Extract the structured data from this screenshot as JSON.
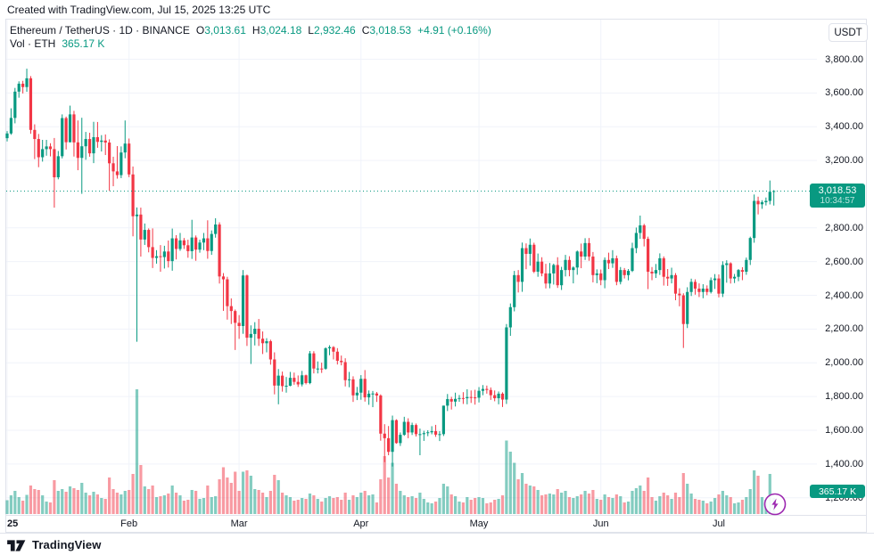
{
  "topbar": {
    "text": "Created with TradingView.com, Jul 15, 2025 13:25 UTC"
  },
  "legend": {
    "title": "Ethereum / TetherUS · 1D · BINANCE",
    "ohlc": [
      {
        "k": "O",
        "v": "3,013.61"
      },
      {
        "k": "H",
        "v": "3,024.18"
      },
      {
        "k": "L",
        "v": "2,932.46"
      },
      {
        "k": "C",
        "v": "3,018.53"
      }
    ],
    "change": "+4.91 (+0.16%)",
    "vol_label": "Vol · ETH",
    "vol_value": "365.17 K"
  },
  "axis": {
    "currency": "USDT"
  },
  "badges": {
    "price": {
      "text": "3,018.53",
      "countdown": "10:34:57"
    },
    "volume": {
      "text": "365.17 K"
    }
  },
  "footer": {
    "brand": "TradingView"
  },
  "colors": {
    "up": "#089981",
    "down": "#f23645",
    "vol_up": "rgba(8,153,129,0.5)",
    "vol_down": "rgba(242,54,69,0.5)",
    "grid": "#f0f3fa",
    "border": "#e0e3eb",
    "text": "#131722",
    "current_price_line": "#089981",
    "flash_purple": "#9c27b0"
  },
  "price_axis": {
    "labels": [
      {
        "price": 3800,
        "text": "3,800.00"
      },
      {
        "price": 3600,
        "text": "3,600.00"
      },
      {
        "price": 3400,
        "text": "3,400.00"
      },
      {
        "price": 3200,
        "text": "3,200.00"
      },
      {
        "price": 2800,
        "text": "2,800.00"
      },
      {
        "price": 2600,
        "text": "2,600.00"
      },
      {
        "price": 2400,
        "text": "2,400.00"
      },
      {
        "price": 2200,
        "text": "2,200.00"
      },
      {
        "price": 2000,
        "text": "2,000.00"
      },
      {
        "price": 1800,
        "text": "1,800.00"
      },
      {
        "price": 1600,
        "text": "1,600.00"
      },
      {
        "price": 1400,
        "text": "1,400.00"
      },
      {
        "price": 1200,
        "text": "1,200.00"
      }
    ]
  },
  "time_axis": {
    "labels": [
      {
        "label": "25",
        "day": 0,
        "bold": true
      },
      {
        "label": "Feb",
        "day": 31,
        "bold": false
      },
      {
        "label": "Mar",
        "day": 59,
        "bold": false
      },
      {
        "label": "Apr",
        "day": 90,
        "bold": false
      },
      {
        "label": "May",
        "day": 120,
        "bold": false
      },
      {
        "label": "Jun",
        "day": 151,
        "bold": false
      },
      {
        "label": "Jul",
        "day": 181,
        "bold": false
      }
    ]
  },
  "chart_data": {
    "type": "candlestick",
    "symbol": "ETHUSDT",
    "exchange": "BINANCE",
    "interval": "1D",
    "start_date": "2025-01-01",
    "end_date": "2025-07-15",
    "current_price": 3018.53,
    "price_axis_range": [
      1150,
      3900
    ],
    "volume_unit": "K ETH",
    "columns": [
      "open",
      "high",
      "low",
      "close",
      "volume_k"
    ],
    "candles": [
      [
        3332,
        3374,
        3313,
        3360,
        310
      ],
      [
        3360,
        3509,
        3352,
        3452,
        420
      ],
      [
        3452,
        3630,
        3420,
        3608,
        520
      ],
      [
        3608,
        3669,
        3572,
        3655,
        380
      ],
      [
        3655,
        3672,
        3597,
        3635,
        300
      ],
      [
        3635,
        3744,
        3607,
        3687,
        430
      ],
      [
        3687,
        3700,
        3358,
        3381,
        640
      ],
      [
        3381,
        3414,
        3208,
        3327,
        560
      ],
      [
        3327,
        3357,
        3160,
        3219,
        540
      ],
      [
        3219,
        3322,
        3193,
        3267,
        420
      ],
      [
        3267,
        3322,
        3228,
        3283,
        280
      ],
      [
        3283,
        3302,
        3224,
        3267,
        260
      ],
      [
        3267,
        3333,
        2920,
        3100,
        760
      ],
      [
        3100,
        3256,
        3088,
        3225,
        520
      ],
      [
        3225,
        3473,
        3212,
        3451,
        560
      ],
      [
        3451,
        3460,
        3265,
        3308,
        500
      ],
      [
        3308,
        3525,
        3307,
        3473,
        620
      ],
      [
        3473,
        3494,
        3223,
        3307,
        580
      ],
      [
        3307,
        3437,
        3142,
        3215,
        540
      ],
      [
        3215,
        3453,
        3002,
        3284,
        700
      ],
      [
        3284,
        3369,
        3204,
        3327,
        480
      ],
      [
        3327,
        3364,
        3222,
        3242,
        420
      ],
      [
        3242,
        3429,
        3184,
        3338,
        500
      ],
      [
        3338,
        3428,
        3275,
        3310,
        440
      ],
      [
        3310,
        3350,
        3253,
        3318,
        360
      ],
      [
        3318,
        3354,
        3232,
        3306,
        340
      ],
      [
        3306,
        3325,
        3020,
        3183,
        820
      ],
      [
        3183,
        3222,
        3047,
        3135,
        560
      ],
      [
        3135,
        3285,
        3092,
        3113,
        480
      ],
      [
        3113,
        3283,
        3095,
        3247,
        440
      ],
      [
        3247,
        3437,
        3213,
        3300,
        520
      ],
      [
        3300,
        3330,
        3101,
        3117,
        540
      ],
      [
        3117,
        3164,
        2750,
        2869,
        900
      ],
      [
        2869,
        2921,
        2125,
        2879,
        2800
      ],
      [
        2879,
        2920,
        2630,
        2731,
        1100
      ],
      [
        2731,
        2826,
        2699,
        2788,
        620
      ],
      [
        2788,
        2797,
        2655,
        2686,
        560
      ],
      [
        2686,
        2797,
        2562,
        2622,
        640
      ],
      [
        2622,
        2668,
        2588,
        2632,
        380
      ],
      [
        2632,
        2698,
        2540,
        2627,
        400
      ],
      [
        2627,
        2694,
        2559,
        2660,
        420
      ],
      [
        2660,
        2725,
        2565,
        2603,
        460
      ],
      [
        2603,
        2796,
        2546,
        2738,
        640
      ],
      [
        2738,
        2757,
        2613,
        2675,
        480
      ],
      [
        2675,
        2770,
        2664,
        2726,
        420
      ],
      [
        2726,
        2740,
        2675,
        2697,
        300
      ],
      [
        2697,
        2730,
        2623,
        2662,
        320
      ],
      [
        2662,
        2848,
        2616,
        2743,
        540
      ],
      [
        2743,
        2755,
        2605,
        2671,
        520
      ],
      [
        2671,
        2730,
        2653,
        2713,
        340
      ],
      [
        2713,
        2770,
        2668,
        2738,
        360
      ],
      [
        2738,
        2845,
        2617,
        2663,
        640
      ],
      [
        2663,
        2785,
        2640,
        2764,
        380
      ],
      [
        2764,
        2857,
        2742,
        2820,
        400
      ],
      [
        2820,
        2833,
        2470,
        2512,
        780
      ],
      [
        2512,
        2532,
        2308,
        2495,
        1050
      ],
      [
        2495,
        2510,
        2256,
        2336,
        820
      ],
      [
        2336,
        2382,
        2230,
        2307,
        700
      ],
      [
        2307,
        2316,
        2076,
        2237,
        950
      ],
      [
        2237,
        2283,
        2142,
        2218,
        520
      ],
      [
        2218,
        2550,
        2172,
        2518,
        950
      ],
      [
        2518,
        2523,
        2100,
        2149,
        980
      ],
      [
        2149,
        2222,
        1993,
        2171,
        860
      ],
      [
        2171,
        2241,
        2103,
        2202,
        560
      ],
      [
        2202,
        2260,
        2100,
        2143,
        540
      ],
      [
        2143,
        2186,
        2052,
        2116,
        480
      ],
      [
        2116,
        2146,
        2062,
        2128,
        380
      ],
      [
        2128,
        2137,
        1989,
        2020,
        520
      ],
      [
        2020,
        2062,
        1813,
        1865,
        880
      ],
      [
        1865,
        1963,
        1754,
        1924,
        760
      ],
      [
        1924,
        1948,
        1829,
        1862,
        480
      ],
      [
        1862,
        1916,
        1823,
        1864,
        420
      ],
      [
        1864,
        1946,
        1861,
        1911,
        380
      ],
      [
        1911,
        1942,
        1870,
        1887,
        300
      ],
      [
        1887,
        1925,
        1857,
        1872,
        320
      ],
      [
        1872,
        1952,
        1860,
        1926,
        360
      ],
      [
        1926,
        1930,
        1872,
        1880,
        340
      ],
      [
        1880,
        2070,
        1873,
        2056,
        460
      ],
      [
        2056,
        2069,
        1937,
        1966,
        420
      ],
      [
        1966,
        2008,
        1937,
        1966,
        340
      ],
      [
        1966,
        2001,
        1940,
        1965,
        280
      ],
      [
        1965,
        2092,
        1959,
        2086,
        360
      ],
      [
        2086,
        2104,
        2045,
        2093,
        400
      ],
      [
        2093,
        2099,
        2020,
        2066,
        360
      ],
      [
        2066,
        2087,
        1990,
        2012,
        380
      ],
      [
        2012,
        2043,
        1985,
        2004,
        320
      ],
      [
        2004,
        2027,
        1860,
        1897,
        480
      ],
      [
        1897,
        1946,
        1855,
        1902,
        320
      ],
      [
        1902,
        1920,
        1768,
        1807,
        420
      ],
      [
        1807,
        1857,
        1779,
        1823,
        380
      ],
      [
        1823,
        1927,
        1781,
        1905,
        480
      ],
      [
        1905,
        1957,
        1770,
        1795,
        520
      ],
      [
        1795,
        1836,
        1751,
        1817,
        420
      ],
      [
        1817,
        1833,
        1737,
        1818,
        440
      ],
      [
        1818,
        1827,
        1768,
        1806,
        260
      ],
      [
        1806,
        1813,
        1538,
        1580,
        780
      ],
      [
        1580,
        1636,
        1411,
        1553,
        1300
      ],
      [
        1553,
        1625,
        1452,
        1472,
        820
      ],
      [
        1472,
        1687,
        1385,
        1660,
        1150
      ],
      [
        1660,
        1665,
        1520,
        1524,
        680
      ],
      [
        1524,
        1587,
        1507,
        1573,
        520
      ],
      [
        1573,
        1680,
        1567,
        1650,
        420
      ],
      [
        1650,
        1671,
        1553,
        1587,
        380
      ],
      [
        1587,
        1645,
        1572,
        1631,
        400
      ],
      [
        1631,
        1640,
        1563,
        1577,
        360
      ],
      [
        1577,
        1610,
        1452,
        1577,
        480
      ],
      [
        1577,
        1597,
        1537,
        1583,
        340
      ],
      [
        1583,
        1600,
        1565,
        1588,
        260
      ],
      [
        1588,
        1624,
        1576,
        1595,
        240
      ],
      [
        1595,
        1632,
        1561,
        1574,
        280
      ],
      [
        1574,
        1595,
        1536,
        1577,
        360
      ],
      [
        1577,
        1746,
        1566,
        1746,
        680
      ],
      [
        1746,
        1815,
        1714,
        1785,
        620
      ],
      [
        1785,
        1798,
        1723,
        1770,
        440
      ],
      [
        1770,
        1823,
        1741,
        1786,
        400
      ],
      [
        1786,
        1809,
        1769,
        1791,
        280
      ],
      [
        1791,
        1826,
        1756,
        1790,
        260
      ],
      [
        1790,
        1843,
        1754,
        1797,
        380
      ],
      [
        1797,
        1836,
        1762,
        1795,
        320
      ],
      [
        1795,
        1840,
        1752,
        1793,
        360
      ],
      [
        1793,
        1856,
        1765,
        1834,
        380
      ],
      [
        1834,
        1868,
        1808,
        1845,
        360
      ],
      [
        1845,
        1865,
        1817,
        1839,
        240
      ],
      [
        1839,
        1854,
        1780,
        1808,
        260
      ],
      [
        1808,
        1836,
        1772,
        1790,
        320
      ],
      [
        1790,
        1830,
        1754,
        1817,
        340
      ],
      [
        1817,
        1825,
        1738,
        1782,
        420
      ],
      [
        1782,
        2230,
        1756,
        2210,
        1650
      ],
      [
        2210,
        2352,
        2160,
        2330,
        1400
      ],
      [
        2330,
        2545,
        2305,
        2520,
        1150
      ],
      [
        2520,
        2550,
        2417,
        2480,
        780
      ],
      [
        2480,
        2713,
        2421,
        2680,
        920
      ],
      [
        2680,
        2708,
        2555,
        2646,
        680
      ],
      [
        2646,
        2737,
        2576,
        2700,
        640
      ],
      [
        2700,
        2712,
        2532,
        2540,
        620
      ],
      [
        2540,
        2648,
        2510,
        2600,
        540
      ],
      [
        2600,
        2626,
        2513,
        2530,
        420
      ],
      [
        2530,
        2587,
        2441,
        2470,
        440
      ],
      [
        2470,
        2592,
        2442,
        2530,
        460
      ],
      [
        2530,
        2588,
        2464,
        2580,
        440
      ],
      [
        2580,
        2626,
        2444,
        2460,
        560
      ],
      [
        2460,
        2569,
        2432,
        2550,
        480
      ],
      [
        2550,
        2640,
        2512,
        2610,
        520
      ],
      [
        2610,
        2632,
        2513,
        2550,
        380
      ],
      [
        2550,
        2572,
        2471,
        2565,
        360
      ],
      [
        2565,
        2666,
        2522,
        2660,
        400
      ],
      [
        2660,
        2707,
        2561,
        2630,
        440
      ],
      [
        2630,
        2739,
        2610,
        2710,
        520
      ],
      [
        2710,
        2740,
        2605,
        2630,
        460
      ],
      [
        2630,
        2657,
        2477,
        2520,
        540
      ],
      [
        2520,
        2554,
        2472,
        2530,
        340
      ],
      [
        2530,
        2553,
        2460,
        2490,
        320
      ],
      [
        2490,
        2625,
        2442,
        2610,
        440
      ],
      [
        2610,
        2653,
        2556,
        2590,
        380
      ],
      [
        2590,
        2668,
        2563,
        2620,
        360
      ],
      [
        2620,
        2636,
        2460,
        2480,
        440
      ],
      [
        2480,
        2568,
        2465,
        2550,
        400
      ],
      [
        2550,
        2562,
        2500,
        2520,
        260
      ],
      [
        2520,
        2556,
        2489,
        2545,
        280
      ],
      [
        2545,
        2712,
        2538,
        2680,
        520
      ],
      [
        2680,
        2802,
        2650,
        2770,
        580
      ],
      [
        2770,
        2873,
        2735,
        2815,
        640
      ],
      [
        2815,
        2824,
        2690,
        2735,
        520
      ],
      [
        2735,
        2748,
        2437,
        2540,
        820
      ],
      [
        2540,
        2568,
        2490,
        2530,
        380
      ],
      [
        2530,
        2586,
        2503,
        2550,
        300
      ],
      [
        2550,
        2649,
        2521,
        2620,
        400
      ],
      [
        2620,
        2631,
        2458,
        2510,
        480
      ],
      [
        2510,
        2556,
        2456,
        2500,
        420
      ],
      [
        2500,
        2564,
        2471,
        2520,
        340
      ],
      [
        2520,
        2532,
        2371,
        2410,
        480
      ],
      [
        2410,
        2442,
        2335,
        2400,
        380
      ],
      [
        2400,
        2412,
        2088,
        2230,
        920
      ],
      [
        2230,
        2448,
        2206,
        2420,
        680
      ],
      [
        2420,
        2499,
        2396,
        2480,
        460
      ],
      [
        2480,
        2495,
        2404,
        2440,
        340
      ],
      [
        2440,
        2471,
        2390,
        2420,
        320
      ],
      [
        2420,
        2466,
        2383,
        2440,
        300
      ],
      [
        2440,
        2459,
        2401,
        2420,
        240
      ],
      [
        2420,
        2506,
        2411,
        2490,
        280
      ],
      [
        2490,
        2526,
        2438,
        2500,
        360
      ],
      [
        2500,
        2524,
        2388,
        2410,
        440
      ],
      [
        2410,
        2602,
        2390,
        2580,
        520
      ],
      [
        2580,
        2608,
        2475,
        2590,
        420
      ],
      [
        2590,
        2596,
        2470,
        2500,
        380
      ],
      [
        2500,
        2527,
        2473,
        2510,
        240
      ],
      [
        2510,
        2556,
        2484,
        2550,
        260
      ],
      [
        2550,
        2567,
        2490,
        2540,
        320
      ],
      [
        2540,
        2624,
        2522,
        2610,
        380
      ],
      [
        2610,
        2748,
        2580,
        2740,
        560
      ],
      [
        2740,
        2998,
        2712,
        2960,
        980
      ],
      [
        2960,
        2985,
        2880,
        2940,
        860
      ],
      [
        2940,
        2964,
        2913,
        2952,
        380
      ],
      [
        2952,
        2980,
        2933,
        2960,
        320
      ],
      [
        2960,
        3081,
        2939,
        3014,
        900
      ],
      [
        3013.61,
        3024.18,
        2932.46,
        3018.53,
        365
      ]
    ]
  }
}
